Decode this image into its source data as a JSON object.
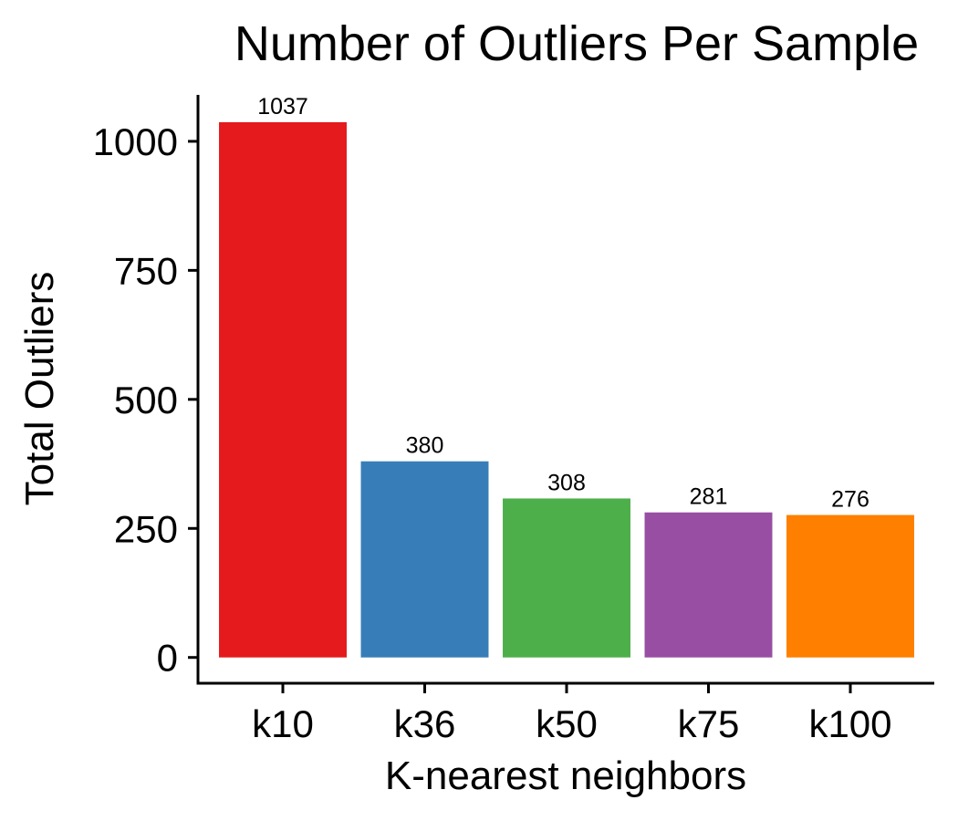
{
  "chart_data": {
    "type": "bar",
    "title": "Number of Outliers Per Sample",
    "xlabel": "K-nearest neighbors",
    "ylabel": "Total Outliers",
    "categories": [
      "k10",
      "k36",
      "k50",
      "k75",
      "k100"
    ],
    "values": [
      1037,
      380,
      308,
      281,
      276
    ],
    "data_labels": [
      "1037",
      "380",
      "308",
      "281",
      "276"
    ],
    "colors": [
      "#E41A1C",
      "#377EB8",
      "#4DAF4A",
      "#984EA3",
      "#FF7F00"
    ],
    "yticks": [
      0,
      250,
      500,
      750,
      1000
    ],
    "ytick_labels": [
      "0",
      "250",
      "500",
      "750",
      "1000"
    ],
    "ylim": [
      -50,
      1090
    ],
    "grid": false,
    "legend": "none"
  }
}
